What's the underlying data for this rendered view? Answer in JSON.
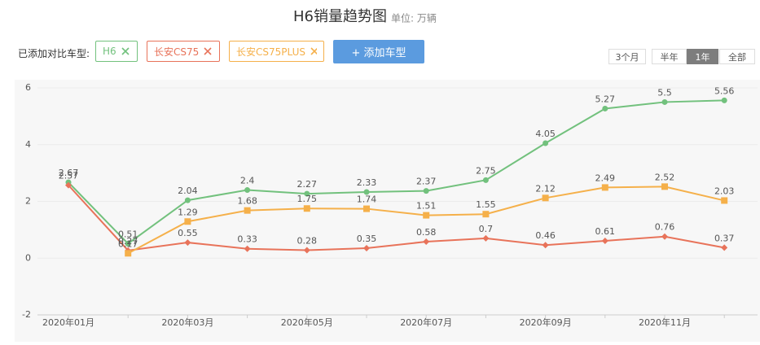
{
  "chart_data": {
    "type": "line",
    "title": "H6销量趋势图",
    "subtitle": "单位: 万辆",
    "categories": [
      "2020年01月",
      null,
      "2020年03月",
      null,
      "2020年05月",
      null,
      "2020年07月",
      null,
      "2020年09月",
      null,
      "2020年11月",
      null
    ],
    "series": [
      {
        "name": "H6",
        "color": "#72c17d",
        "marker": "circle",
        "values": [
          2.67,
          0.51,
          2.04,
          2.4,
          2.27,
          2.33,
          2.37,
          2.75,
          4.05,
          5.27,
          5.5,
          5.56
        ]
      },
      {
        "name": "长安CS75",
        "color": "#e8735a",
        "marker": "diamond",
        "values": [
          2.57,
          0.27,
          0.55,
          0.33,
          0.28,
          0.35,
          0.58,
          0.7,
          0.46,
          0.61,
          0.76,
          0.37
        ]
      },
      {
        "name": "长安CS75PLUS",
        "color": "#f5b04a",
        "marker": "square",
        "values": [
          null,
          0.17,
          1.29,
          1.68,
          1.75,
          1.74,
          1.51,
          1.55,
          2.12,
          2.49,
          2.52,
          2.03
        ]
      }
    ],
    "ylim": [
      -2,
      6
    ],
    "yticks": [
      -2,
      0,
      2,
      4,
      6
    ]
  },
  "controls": {
    "label": "已添加对比车型:",
    "add_button": "+ 添加车型",
    "ranges": [
      "3个月",
      "半年",
      "1年",
      "全部"
    ],
    "selected_range": 2
  }
}
